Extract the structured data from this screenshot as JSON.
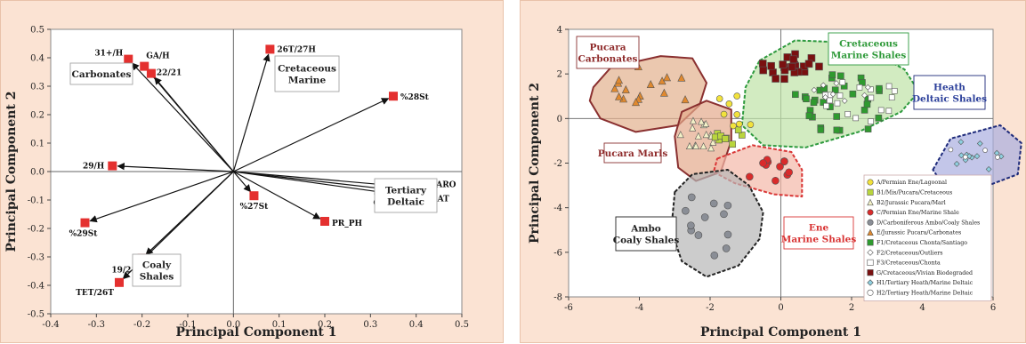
{
  "chart_data": [
    {
      "type": "scatter",
      "subtype": "biplot-loadings",
      "xlabel": "Principal Component 1",
      "ylabel": "Principal Component 2",
      "xlim": [
        -0.4,
        0.5
      ],
      "ylim": [
        -0.5,
        0.5
      ],
      "xticks": [
        -0.4,
        -0.3,
        -0.2,
        -0.1,
        0.0,
        0.1,
        0.2,
        0.3,
        0.4,
        0.5
      ],
      "yticks": [
        -0.5,
        -0.4,
        -0.3,
        -0.2,
        -0.1,
        0.0,
        0.1,
        0.2,
        0.3,
        0.4,
        0.5
      ],
      "grid": false,
      "color": "#e4302f",
      "points": [
        {
          "label": "31+/H",
          "x": -0.23,
          "y": 0.395
        },
        {
          "label": "GA/H",
          "x": -0.195,
          "y": 0.37
        },
        {
          "label": "22/21",
          "x": -0.18,
          "y": 0.345
        },
        {
          "label": "26T/27H",
          "x": 0.08,
          "y": 0.43
        },
        {
          "label": "%28St",
          "x": 0.35,
          "y": 0.265
        },
        {
          "label": "29/H",
          "x": -0.265,
          "y": 0.02
        },
        {
          "label": "C13ARO",
          "x": 0.39,
          "y": -0.055
        },
        {
          "label": "C13SAT",
          "x": 0.38,
          "y": -0.07
        },
        {
          "label": "OL/H",
          "x": 0.335,
          "y": -0.075
        },
        {
          "label": "%27St",
          "x": 0.045,
          "y": -0.085
        },
        {
          "label": "PR_PH",
          "x": 0.2,
          "y": -0.175
        },
        {
          "label": "%29St",
          "x": -0.325,
          "y": -0.18
        },
        {
          "label": "19/21",
          "x": -0.2,
          "y": -0.305
        },
        {
          "label": "TET/26T",
          "x": -0.25,
          "y": -0.39
        }
      ],
      "annotations": [
        "Carbonates",
        "Cretaceous\nMarine",
        "Tertiary\nDeltaic",
        "Coaly\nShales"
      ]
    },
    {
      "type": "scatter",
      "subtype": "biplot-scores",
      "xlabel": "Principal Component 1",
      "ylabel": "Principal Component 2",
      "xlim": [
        -6,
        6
      ],
      "ylim": [
        -8,
        4
      ],
      "xticks": [
        -6,
        -4,
        -2,
        0,
        2,
        4,
        6
      ],
      "yticks": [
        -8,
        -6,
        -4,
        -2,
        0,
        2,
        4
      ],
      "grid": false,
      "groups": [
        {
          "name": "Pucara\nCarbonates",
          "label_color": "#8e2a2a",
          "fill": "#e2b08d",
          "stroke": "#8a3030",
          "dashed": false
        },
        {
          "name": "Cretaceous\nMarine Shales",
          "label_color": "#2f9a3a",
          "fill": "#bfe3a6",
          "stroke": "#2e9a3e",
          "dashed": true
        },
        {
          "name": "Heath\nDeltaic Shales",
          "label_color": "#2b3f9a",
          "fill": "#a9aee0",
          "stroke": "#1d2a7a",
          "dashed": true
        },
        {
          "name": "Pucara Marls",
          "label_color": "#8e2a2a",
          "fill": "#e4a98c",
          "stroke": "#8a3030",
          "dashed": false
        },
        {
          "name": "Ene\nMarine Shales",
          "label_color": "#d83434",
          "fill": "#f4b8a8",
          "stroke": "#d93636",
          "dashed": true
        },
        {
          "name": "Ambo\nCoaly Shales",
          "label_color": "#222222",
          "fill": "#b7b7b7",
          "stroke": "#222222",
          "dashed": true
        }
      ],
      "legend": {
        "placement": "bottom-right",
        "entries": [
          {
            "label": "A/Permian Ene/Lagoonal",
            "marker": "circle",
            "color": "#f2e23c"
          },
          {
            "label": "B1/Mis/Pucara/Cretaceous",
            "marker": "square",
            "color": "#b9d53d"
          },
          {
            "label": "B2/Jurassic Pucara/Marl",
            "marker": "triangle",
            "color": "#f4f2c8"
          },
          {
            "label": "C/Permian Ene/Marine Shale",
            "marker": "circle",
            "color": "#d92b2b"
          },
          {
            "label": "D/Carboniferous Ambo/Coaly Shales",
            "marker": "circle",
            "color": "#8a8e96"
          },
          {
            "label": "E/Jurassic Pucara/Carbonates",
            "marker": "triangle",
            "color": "#e0892f"
          },
          {
            "label": "F1/Cretaceous Chonta/Santiago",
            "marker": "square",
            "color": "#2f9a2f"
          },
          {
            "label": "F2/Cretaceous/Outliers",
            "marker": "diamond",
            "color": "#ffffff"
          },
          {
            "label": "F3/Cretaceous/Chonta",
            "marker": "square",
            "color": "#ffffff"
          },
          {
            "label": "G/Cretaceous/Vivian Biodegraded",
            "marker": "square",
            "color": "#7a1010"
          },
          {
            "label": "H1/Tertiary Heath/Marine Deltaic",
            "marker": "diamond",
            "color": "#8fd0e0"
          },
          {
            "label": "H2/Tertiary Heath/Marine Deltaic",
            "marker": "circle",
            "color": "#ffffff"
          }
        ]
      }
    }
  ]
}
